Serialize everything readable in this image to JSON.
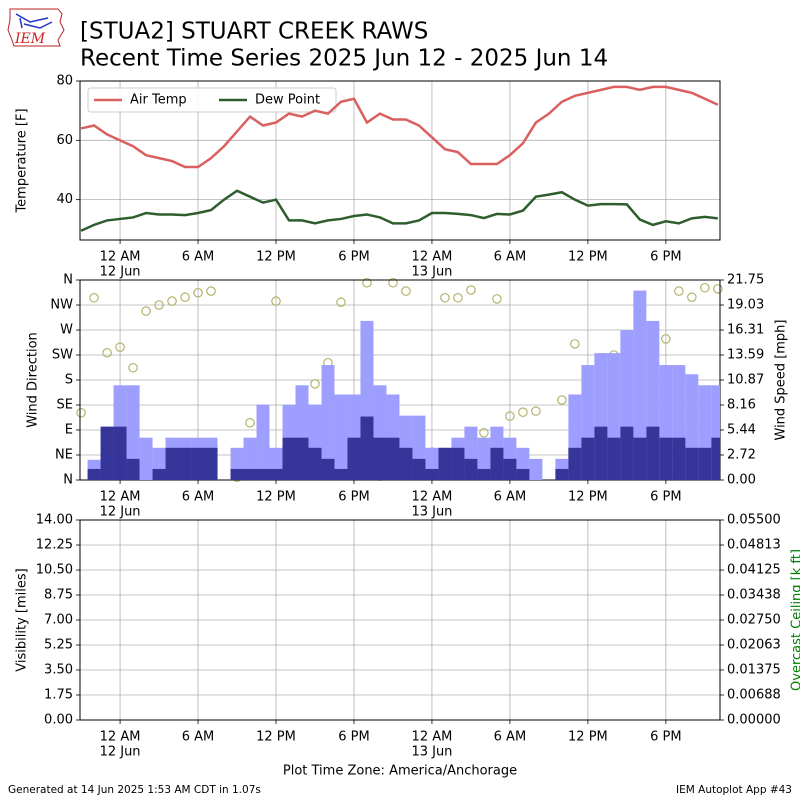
{
  "logo_text": "IEM",
  "title": "[STUA2] STUART CREEK RAWS",
  "subtitle": "Recent Time Series 2025 Jun 12 - 2025 Jun 14",
  "x_axis_label": "Plot Time Zone: America/Anchorage",
  "footer_left": "Generated at 14 Jun 2025 1:53 AM CDT in 1.07s",
  "footer_right": "IEM Autoplot App #43",
  "chart_data": [
    {
      "type": "line",
      "ylabel": "Temperature [F]",
      "grid": true,
      "legend": "upper left",
      "x": [
        "2025-06-11T21:00",
        "2025-06-11T22:00",
        "2025-06-11T23:00",
        "2025-06-12T00:00",
        "2025-06-12T01:00",
        "2025-06-12T02:00",
        "2025-06-12T03:00",
        "2025-06-12T04:00",
        "2025-06-12T05:00",
        "2025-06-12T06:00",
        "2025-06-12T07:00",
        "2025-06-12T08:00",
        "2025-06-12T09:00",
        "2025-06-12T10:00",
        "2025-06-12T11:00",
        "2025-06-12T12:00",
        "2025-06-12T13:00",
        "2025-06-12T14:00",
        "2025-06-12T15:00",
        "2025-06-12T16:00",
        "2025-06-12T17:00",
        "2025-06-12T18:00",
        "2025-06-12T19:00",
        "2025-06-12T20:00",
        "2025-06-12T21:00",
        "2025-06-12T22:00",
        "2025-06-12T23:00",
        "2025-06-13T00:00",
        "2025-06-13T01:00",
        "2025-06-13T02:00",
        "2025-06-13T03:00",
        "2025-06-13T04:00",
        "2025-06-13T05:00",
        "2025-06-13T06:00",
        "2025-06-13T07:00",
        "2025-06-13T08:00",
        "2025-06-13T09:00",
        "2025-06-13T10:00",
        "2025-06-13T11:00",
        "2025-06-13T12:00",
        "2025-06-13T13:00",
        "2025-06-13T14:00",
        "2025-06-13T15:00",
        "2025-06-13T16:00",
        "2025-06-13T17:00",
        "2025-06-13T18:00",
        "2025-06-13T19:00",
        "2025-06-13T20:00",
        "2025-06-13T21:00",
        "2025-06-13T22:00"
      ],
      "xlim": [
        "2025-06-11T20:55",
        "2025-06-13T22:10"
      ],
      "xticks": [
        {
          "value": "2025-06-12T00:00",
          "label": "12 AM",
          "sublabel": "12 Jun"
        },
        {
          "value": "2025-06-12T06:00",
          "label": "6 AM"
        },
        {
          "value": "2025-06-12T12:00",
          "label": "12 PM"
        },
        {
          "value": "2025-06-12T18:00",
          "label": "6 PM"
        },
        {
          "value": "2025-06-13T00:00",
          "label": "12 AM",
          "sublabel": "13 Jun"
        },
        {
          "value": "2025-06-13T06:00",
          "label": "6 AM"
        },
        {
          "value": "2025-06-13T12:00",
          "label": "12 PM"
        },
        {
          "value": "2025-06-13T18:00",
          "label": "6 PM"
        }
      ],
      "ylim": [
        26.4,
        80
      ],
      "yticks": [
        40,
        60,
        80
      ],
      "series": [
        {
          "name": "Air Temp",
          "color": "#d9605f",
          "values": [
            64,
            65,
            62,
            60,
            58,
            55,
            54,
            53,
            51,
            51,
            54,
            58,
            63,
            68,
            65,
            66,
            69,
            68,
            70,
            69,
            73,
            74,
            66,
            69,
            67,
            67,
            65,
            61,
            57,
            56,
            52,
            52,
            52,
            55,
            59,
            66,
            69,
            73,
            75,
            76,
            77,
            78,
            78,
            77,
            78,
            78,
            77,
            76,
            74,
            72
          ]
        },
        {
          "name": "Dew Point",
          "color": "#2e5e2e",
          "values": [
            29.5,
            31.5,
            33,
            33.5,
            34,
            35.5,
            35,
            35,
            34.8,
            35.5,
            36.5,
            40,
            43,
            41,
            39,
            40,
            33,
            33,
            32,
            33,
            33.5,
            34.5,
            35,
            34,
            32,
            32,
            33,
            35.5,
            35.5,
            35.2,
            34.8,
            33.8,
            35.2,
            35,
            36.3,
            41,
            41.7,
            42.5,
            40,
            38,
            38.5,
            38.5,
            38.4,
            33.3,
            31.5,
            32.7,
            32,
            33.7,
            34.2,
            33.7
          ]
        }
      ]
    },
    {
      "type": "bar",
      "ylabel": "Wind Direction",
      "y2label": "Wind Speed [mph]",
      "grid": true,
      "x": [
        "2025-06-11T21:00",
        "2025-06-11T22:00",
        "2025-06-11T23:00",
        "2025-06-12T00:00",
        "2025-06-12T01:00",
        "2025-06-12T02:00",
        "2025-06-12T03:00",
        "2025-06-12T04:00",
        "2025-06-12T05:00",
        "2025-06-12T06:00",
        "2025-06-12T07:00",
        "2025-06-12T08:00",
        "2025-06-12T09:00",
        "2025-06-12T10:00",
        "2025-06-12T11:00",
        "2025-06-12T12:00",
        "2025-06-12T13:00",
        "2025-06-12T14:00",
        "2025-06-12T15:00",
        "2025-06-12T16:00",
        "2025-06-12T17:00",
        "2025-06-12T18:00",
        "2025-06-12T19:00",
        "2025-06-12T20:00",
        "2025-06-12T21:00",
        "2025-06-12T22:00",
        "2025-06-12T23:00",
        "2025-06-13T00:00",
        "2025-06-13T01:00",
        "2025-06-13T02:00",
        "2025-06-13T03:00",
        "2025-06-13T04:00",
        "2025-06-13T05:00",
        "2025-06-13T06:00",
        "2025-06-13T07:00",
        "2025-06-13T08:00",
        "2025-06-13T09:00",
        "2025-06-13T10:00",
        "2025-06-13T11:00",
        "2025-06-13T12:00",
        "2025-06-13T13:00",
        "2025-06-13T14:00",
        "2025-06-13T15:00",
        "2025-06-13T16:00",
        "2025-06-13T17:00",
        "2025-06-13T18:00",
        "2025-06-13T19:00",
        "2025-06-13T20:00",
        "2025-06-13T21:00",
        "2025-06-13T22:00"
      ],
      "xlim": [
        "2025-06-11T20:55",
        "2025-06-13T22:10"
      ],
      "xticks": [
        {
          "value": "2025-06-12T00:00",
          "label": "12 AM",
          "sublabel": "12 Jun"
        },
        {
          "value": "2025-06-12T06:00",
          "label": "6 AM"
        },
        {
          "value": "2025-06-12T12:00",
          "label": "12 PM"
        },
        {
          "value": "2025-06-12T18:00",
          "label": "6 PM"
        },
        {
          "value": "2025-06-13T00:00",
          "label": "12 AM",
          "sublabel": "13 Jun"
        },
        {
          "value": "2025-06-13T06:00",
          "label": "6 AM"
        },
        {
          "value": "2025-06-13T12:00",
          "label": "12 PM"
        },
        {
          "value": "2025-06-13T18:00",
          "label": "6 PM"
        }
      ],
      "ylim": [
        0,
        360
      ],
      "yticks": [
        {
          "value": 0,
          "label": "N"
        },
        {
          "value": 45,
          "label": "NE"
        },
        {
          "value": 90,
          "label": "E"
        },
        {
          "value": 135,
          "label": "SE"
        },
        {
          "value": 180,
          "label": "S"
        },
        {
          "value": 225,
          "label": "SW"
        },
        {
          "value": 270,
          "label": "W"
        },
        {
          "value": 315,
          "label": "NW"
        },
        {
          "value": 360,
          "label": "N"
        }
      ],
      "y2lim": [
        0,
        21.75
      ],
      "y2ticks": [
        {
          "value": 0,
          "label": "0.00"
        },
        {
          "value": 2.71875,
          "label": "2.72"
        },
        {
          "value": 5.4375,
          "label": "5.44"
        },
        {
          "value": 8.15625,
          "label": "8.16"
        },
        {
          "value": 10.875,
          "label": "10.87"
        },
        {
          "value": 13.59375,
          "label": "13.59"
        },
        {
          "value": 16.3125,
          "label": "16.31"
        },
        {
          "value": 19.03125,
          "label": "19.03"
        },
        {
          "value": 21.75,
          "label": "21.75"
        }
      ],
      "series": [
        {
          "type": "bar",
          "axis": "y2",
          "color": "#9e9eff",
          "values": [
            null,
            2.2,
            5.8,
            10.3,
            10.3,
            4.6,
            3.5,
            4.6,
            4.6,
            4.6,
            4.6,
            null,
            3.5,
            4.6,
            8.2,
            3.5,
            8.2,
            10.3,
            8.2,
            12.5,
            9.3,
            9.3,
            17.3,
            10.3,
            9.3,
            7.0,
            7.0,
            3.5,
            3.5,
            4.6,
            5.8,
            4.6,
            5.8,
            4.6,
            3.5,
            2.3,
            null,
            2.3,
            9.3,
            12.5,
            13.8,
            13.8,
            16.3,
            20.6,
            17.3,
            12.5,
            12.5,
            11.5,
            10.3,
            10.3
          ]
        },
        {
          "type": "bar",
          "axis": "y2",
          "color": "#35359a",
          "values": [
            null,
            1.2,
            5.8,
            5.8,
            2.3,
            0,
            1.2,
            3.5,
            3.5,
            3.5,
            3.5,
            null,
            1.2,
            1.2,
            1.2,
            1.2,
            4.6,
            4.6,
            3.5,
            2.3,
            1.2,
            4.6,
            6.9,
            4.6,
            4.6,
            3.5,
            2.3,
            1.2,
            3.5,
            3.5,
            2.3,
            1.2,
            3.5,
            2.3,
            1.2,
            0,
            null,
            1.2,
            3.5,
            4.6,
            5.8,
            4.6,
            5.8,
            4.6,
            5.8,
            4.6,
            4.6,
            3.5,
            3.5,
            4.6
          ]
        },
        {
          "type": "scatter",
          "axis": "y",
          "color": "#b3b36b",
          "values": [
            121,
            328,
            229,
            239,
            202,
            304,
            315,
            322,
            329,
            337,
            340,
            null,
            5,
            103,
            20,
            322,
            20,
            47,
            173,
            211,
            320,
            108,
            355,
            7,
            355,
            340,
            16,
            50,
            328,
            328,
            342,
            85,
            326,
            115,
            122,
            124,
            null,
            144,
            245,
            189,
            220,
            225,
            225,
            304,
            220,
            254,
            340,
            329,
            346,
            344
          ]
        }
      ]
    },
    {
      "type": "line",
      "ylabel": "Visibility [miles]",
      "y2label": "Overcast Ceiling [k ft]",
      "y2label_color": "#008000",
      "grid": true,
      "xlim": [
        "2025-06-11T20:55",
        "2025-06-13T22:10"
      ],
      "xticks": [
        {
          "value": "2025-06-12T00:00",
          "label": "12 AM",
          "sublabel": "12 Jun"
        },
        {
          "value": "2025-06-12T06:00",
          "label": "6 AM"
        },
        {
          "value": "2025-06-12T12:00",
          "label": "12 PM"
        },
        {
          "value": "2025-06-12T18:00",
          "label": "6 PM"
        },
        {
          "value": "2025-06-13T00:00",
          "label": "12 AM",
          "sublabel": "13 Jun"
        },
        {
          "value": "2025-06-13T06:00",
          "label": "6 AM"
        },
        {
          "value": "2025-06-13T12:00",
          "label": "12 PM"
        },
        {
          "value": "2025-06-13T18:00",
          "label": "6 PM"
        }
      ],
      "ylim": [
        0,
        14
      ],
      "yticks": [
        {
          "value": 0,
          "label": "0.00"
        },
        {
          "value": 1.75,
          "label": "1.75"
        },
        {
          "value": 3.5,
          "label": "3.50"
        },
        {
          "value": 5.25,
          "label": "5.25"
        },
        {
          "value": 7,
          "label": "7.00"
        },
        {
          "value": 8.75,
          "label": "8.75"
        },
        {
          "value": 10.5,
          "label": "10.50"
        },
        {
          "value": 12.25,
          "label": "12.25"
        },
        {
          "value": 14,
          "label": "14.00"
        }
      ],
      "y2lim": [
        0,
        0.055
      ],
      "y2ticks": [
        {
          "value": 0,
          "label": "0.00000"
        },
        {
          "value": 0.006875,
          "label": "0.00688"
        },
        {
          "value": 0.01375,
          "label": "0.01375"
        },
        {
          "value": 0.020625,
          "label": "0.02063"
        },
        {
          "value": 0.0275,
          "label": "0.02750"
        },
        {
          "value": 0.034375,
          "label": "0.03438"
        },
        {
          "value": 0.04125,
          "label": "0.04125"
        },
        {
          "value": 0.048125,
          "label": "0.04813"
        },
        {
          "value": 0.055,
          "label": "0.05500"
        }
      ],
      "series": []
    }
  ]
}
